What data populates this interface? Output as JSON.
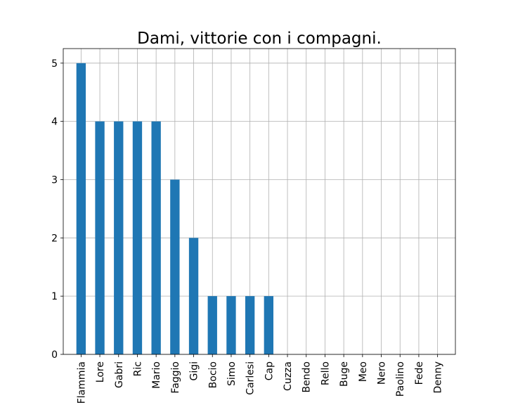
{
  "chart_data": {
    "type": "bar",
    "title": "Dami, vittorie con i compagni.",
    "xlabel": "",
    "ylabel": "",
    "categories": [
      "Flammia",
      "Lore",
      "Gabri",
      "Ric",
      "Mario",
      "Faggio",
      "Gigi",
      "Bocio",
      "Simo",
      "Carlesi",
      "Cap",
      "Cuzza",
      "Bendo",
      "Rello",
      "Buge",
      "Meo",
      "Nero",
      "Paolino",
      "Fede",
      "Denny"
    ],
    "values": [
      5,
      4,
      4,
      4,
      4,
      3,
      2,
      1,
      1,
      1,
      1,
      0,
      0,
      0,
      0,
      0,
      0,
      0,
      0,
      0
    ],
    "ylim": [
      0,
      5.25
    ],
    "yticks": [
      0,
      1,
      2,
      3,
      4,
      5
    ],
    "grid": true,
    "legend": "none",
    "color": "#1f77b4"
  }
}
